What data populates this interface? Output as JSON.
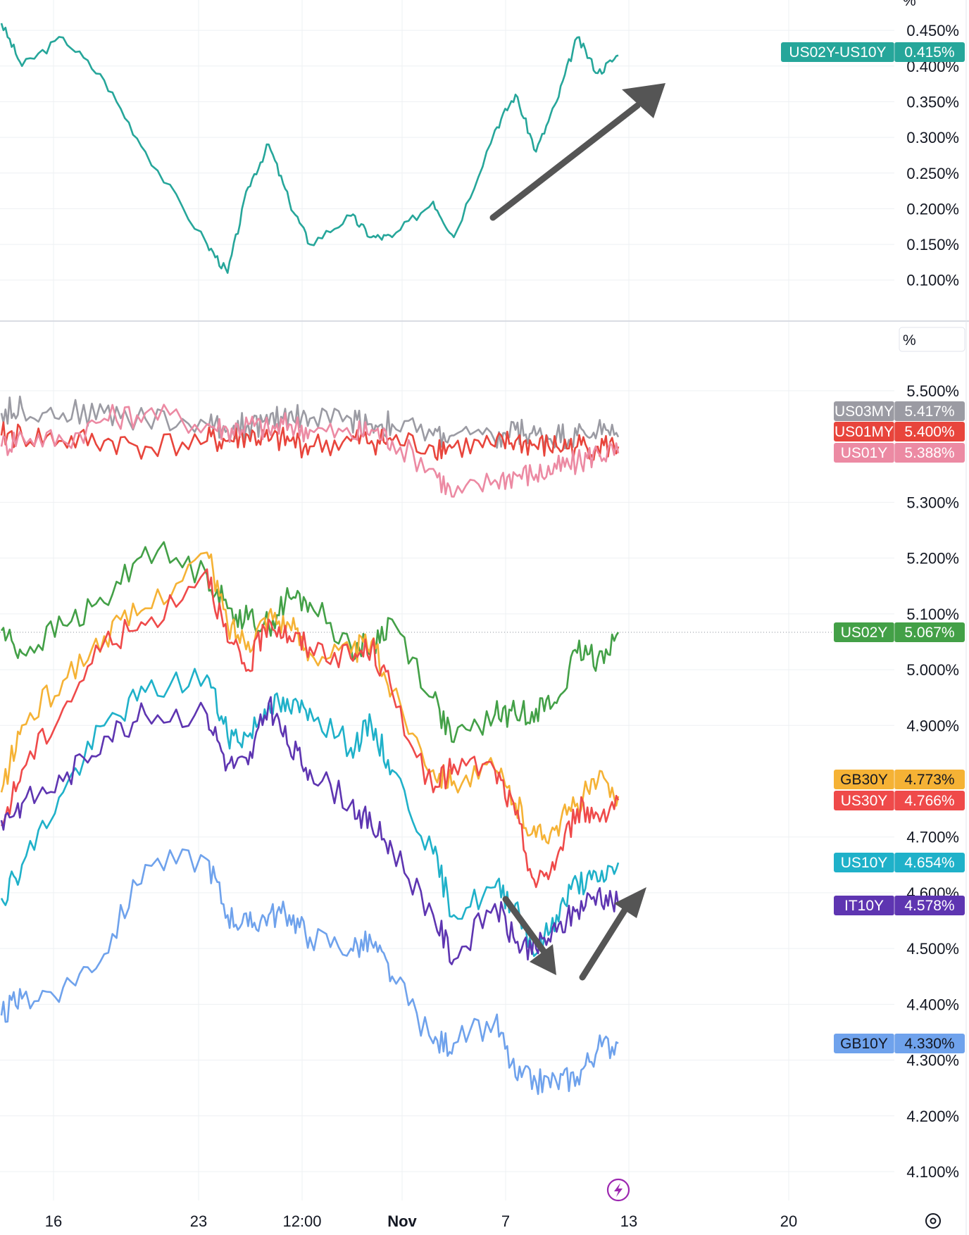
{
  "colors": {
    "spread": "#26a69a",
    "US03MY": "#9b9ba3",
    "US01MY": "#e8453c",
    "US01Y": "#ec8aa3",
    "US02Y": "#43a047",
    "GB30Y": "#f5b235",
    "US30Y": "#ef4a4a",
    "US10Y": "#1fb1c9",
    "IT10Y": "#5e35b1",
    "GB10Y": "#6fa2ec",
    "arrow": "#555555",
    "grid": "#eef0f3",
    "flash_icon": "#9c27b0"
  },
  "top_pane": {
    "unit_label": "%",
    "ticks": [
      "0.450%",
      "0.400%",
      "0.350%",
      "0.300%",
      "0.250%",
      "0.200%",
      "0.150%",
      "0.100%"
    ]
  },
  "bottom_pane": {
    "unit_label": "%",
    "ticks": [
      "5.500%",
      "5.300%",
      "5.200%",
      "5.100%",
      "5.000%",
      "4.900%",
      "4.700%",
      "4.600%",
      "4.500%",
      "4.400%",
      "4.300%",
      "4.200%",
      "4.100%"
    ]
  },
  "x_axis": {
    "ticks": [
      "16",
      "23",
      "12:00",
      "Nov",
      "7",
      "13",
      "20"
    ],
    "settings_icon": "gear-icon",
    "flash_icon": "lightning-icon"
  },
  "badges": [
    {
      "symbol": "US02Y-US10Y",
      "value": "0.415%"
    },
    {
      "symbol": "US03MY",
      "value": "5.417%"
    },
    {
      "symbol": "US01MY",
      "value": "5.400%"
    },
    {
      "symbol": "US01Y",
      "value": "5.388%"
    },
    {
      "symbol": "US02Y",
      "value": "5.067%"
    },
    {
      "symbol": "GB30Y",
      "value": "4.773%"
    },
    {
      "symbol": "US30Y",
      "value": "4.766%"
    },
    {
      "symbol": "US10Y",
      "value": "4.654%"
    },
    {
      "symbol": "IT10Y",
      "value": "4.578%"
    },
    {
      "symbol": "GB10Y",
      "value": "4.330%"
    }
  ],
  "chart_data": [
    {
      "type": "line",
      "ylim": [
        0.08,
        0.47
      ],
      "x": [
        "Oct 13",
        "Oct 14",
        "Oct 16",
        "Oct 18",
        "Oct 20",
        "Oct 23",
        "Oct 24",
        "Oct 25",
        "Oct 26",
        "Oct 27",
        "Oct 28",
        "Oct 30",
        "Oct 31",
        "Nov 1",
        "Nov 3",
        "Nov 4",
        "Nov 6",
        "Nov 7",
        "Nov 8",
        "Nov 9",
        "Nov 10",
        "Nov 11",
        "Nov 12"
      ],
      "series": [
        {
          "name": "US02Y-US10Y",
          "values": [
            0.46,
            0.4,
            0.44,
            0.38,
            0.28,
            0.15,
            0.11,
            0.23,
            0.29,
            0.21,
            0.15,
            0.19,
            0.16,
            0.16,
            0.21,
            0.16,
            0.31,
            0.36,
            0.28,
            0.35,
            0.44,
            0.39,
            0.415
          ]
        }
      ]
    },
    {
      "type": "line",
      "ylim": [
        4.05,
        5.58
      ],
      "x": [
        "Oct 13",
        "Oct 14",
        "Oct 16",
        "Oct 18",
        "Oct 20",
        "Oct 23",
        "Oct 24",
        "Oct 25",
        "Oct 26",
        "Oct 27",
        "Oct 28",
        "Oct 30",
        "Oct 31",
        "Nov 1",
        "Nov 3",
        "Nov 4",
        "Nov 6",
        "Nov 7",
        "Nov 8",
        "Nov 9",
        "Nov 10",
        "Nov 11",
        "Nov 12"
      ],
      "series": [
        {
          "name": "US03MY",
          "values": [
            5.46,
            5.47,
            5.46,
            5.46,
            5.45,
            5.44,
            5.43,
            5.44,
            5.44,
            5.46,
            5.45,
            5.45,
            5.44,
            5.44,
            5.42,
            5.42,
            5.41,
            5.43,
            5.42,
            5.42,
            5.42,
            5.43,
            5.417
          ]
        },
        {
          "name": "US01MY",
          "values": [
            5.42,
            5.42,
            5.41,
            5.41,
            5.4,
            5.41,
            5.41,
            5.42,
            5.41,
            5.41,
            5.4,
            5.41,
            5.41,
            5.41,
            5.4,
            5.4,
            5.4,
            5.41,
            5.4,
            5.4,
            5.4,
            5.4,
            5.4
          ]
        },
        {
          "name": "US01Y",
          "values": [
            5.4,
            5.42,
            5.41,
            5.45,
            5.46,
            5.44,
            5.43,
            5.44,
            5.43,
            5.44,
            5.43,
            5.42,
            5.43,
            5.41,
            5.36,
            5.31,
            5.34,
            5.35,
            5.35,
            5.36,
            5.37,
            5.39,
            5.388
          ]
        },
        {
          "name": "US02Y",
          "values": [
            5.07,
            5.03,
            5.08,
            5.12,
            5.22,
            5.17,
            5.11,
            5.09,
            5.08,
            5.13,
            5.12,
            5.04,
            5.04,
            5.09,
            4.95,
            4.87,
            4.92,
            4.92,
            4.93,
            4.94,
            5.03,
            5.02,
            5.067
          ]
        },
        {
          "name": "GB30Y",
          "values": [
            4.78,
            4.9,
            4.98,
            5.06,
            5.11,
            5.21,
            5.08,
            5.05,
            5.1,
            5.08,
            5.03,
            5.03,
            5.05,
            4.96,
            4.82,
            4.8,
            4.82,
            4.76,
            4.7,
            4.72,
            4.76,
            4.8,
            4.773
          ]
        },
        {
          "name": "US30Y",
          "values": [
            4.72,
            4.82,
            4.93,
            5.05,
            5.08,
            5.18,
            5.05,
            5.0,
            5.09,
            5.06,
            5.04,
            5.02,
            5.04,
            4.96,
            4.78,
            4.83,
            4.82,
            4.74,
            4.61,
            4.66,
            4.75,
            4.74,
            4.766
          ]
        },
        {
          "name": "US10Y",
          "values": [
            4.59,
            4.65,
            4.78,
            4.9,
            4.96,
            4.99,
            4.88,
            4.88,
            4.94,
            4.93,
            4.93,
            4.86,
            4.9,
            4.82,
            4.67,
            4.56,
            4.61,
            4.58,
            4.49,
            4.56,
            4.62,
            4.62,
            4.654
          ]
        },
        {
          "name": "IT10Y",
          "values": [
            4.73,
            4.76,
            4.8,
            4.88,
            4.92,
            4.92,
            4.83,
            4.83,
            4.94,
            4.86,
            4.82,
            4.76,
            4.72,
            4.68,
            4.56,
            4.48,
            4.58,
            4.51,
            4.5,
            4.53,
            4.57,
            4.6,
            4.578
          ]
        },
        {
          "name": "GB10Y",
          "values": [
            4.38,
            4.41,
            4.43,
            4.49,
            4.65,
            4.66,
            4.56,
            4.54,
            4.56,
            4.56,
            4.52,
            4.5,
            4.51,
            4.45,
            4.33,
            4.33,
            4.37,
            4.27,
            4.26,
            4.26,
            4.27,
            4.32,
            4.33
          ]
        }
      ]
    }
  ]
}
